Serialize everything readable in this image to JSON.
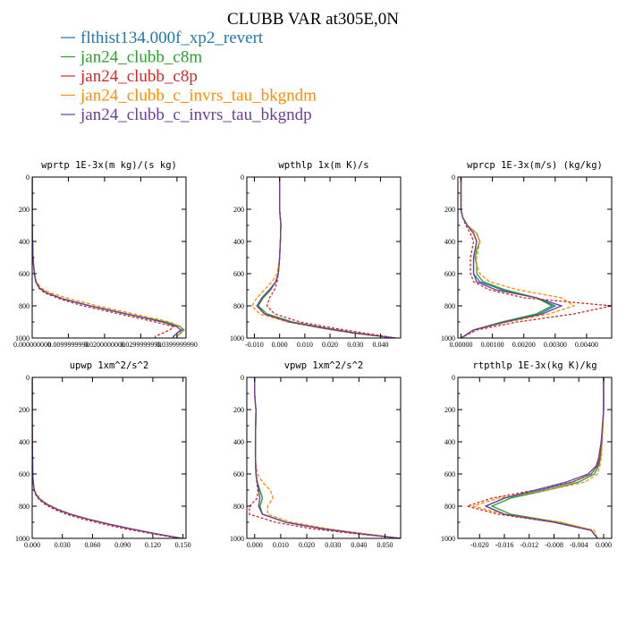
{
  "title": "CLUBB VAR at305E,0N",
  "legend": [
    {
      "label": "flthist134.000f_xp2_revert",
      "color": "#1f77b4"
    },
    {
      "label": "jan24_clubb_c8m",
      "color": "#2ca02c"
    },
    {
      "label": "jan24_clubb_c8p",
      "color": "#d62728"
    },
    {
      "label": "jan24_clubb_c_invrs_tau_bkgndm",
      "color": "#ff8c00"
    },
    {
      "label": "jan24_clubb_c_invrs_tau_bkgndp",
      "color": "#6a3d9a"
    }
  ],
  "chart_data": [
    {
      "type": "line",
      "title": "wprtp  1E-3x(m kg)/(s kg)",
      "xlim": [
        0.0,
        0.0425
      ],
      "ylim": [
        1000,
        0
      ],
      "xticks": [
        0.0,
        0.01,
        0.02,
        0.03,
        0.04
      ],
      "xtick_labels": [
        "0.000000000",
        "0.0099999990",
        "0.0200000000",
        "0.0299999990",
        "0.0399999990"
      ],
      "yticks": [
        0,
        200,
        400,
        600,
        800,
        1000
      ],
      "y": [
        0,
        300,
        500,
        600,
        650,
        690,
        720,
        760,
        800,
        850,
        900,
        930,
        950,
        970,
        990,
        1000
      ],
      "series": [
        {
          "name": "flthist134.000f_xp2_revert",
          "values": [
            0,
            0,
            0.0002,
            0.0006,
            0.001,
            0.002,
            0.004,
            0.009,
            0.016,
            0.026,
            0.036,
            0.041,
            0.0415,
            0.04,
            0.039,
            0.039
          ]
        },
        {
          "name": "jan24_clubb_c8m",
          "values": [
            0,
            0,
            0.0002,
            0.0006,
            0.001,
            0.002,
            0.004,
            0.009,
            0.016,
            0.026,
            0.037,
            0.041,
            0.042,
            0.041,
            0.04,
            0.04
          ]
        },
        {
          "name": "jan24_clubb_c8p",
          "values": [
            0,
            0,
            0.0002,
            0.0006,
            0.001,
            0.0018,
            0.0035,
            0.008,
            0.014,
            0.024,
            0.034,
            0.039,
            0.038,
            0.036,
            0.034,
            0.034
          ]
        },
        {
          "name": "jan24_clubb_c_invrs_tau_bkgndm",
          "values": [
            0,
            0,
            0.0002,
            0.0006,
            0.0012,
            0.0025,
            0.005,
            0.011,
            0.018,
            0.028,
            0.038,
            0.041,
            0.042,
            0.041,
            0.04,
            0.04
          ]
        },
        {
          "name": "jan24_clubb_c_invrs_tau_bkgndp",
          "values": [
            0,
            0,
            0.0002,
            0.0006,
            0.001,
            0.002,
            0.004,
            0.009,
            0.016,
            0.026,
            0.036,
            0.04,
            0.041,
            0.04,
            0.039,
            0.039
          ]
        }
      ]
    },
    {
      "type": "line",
      "title": "wpthlp  1x(m K)/s",
      "xlim": [
        -0.013,
        0.048
      ],
      "ylim": [
        1000,
        0
      ],
      "xticks": [
        -0.01,
        0.0,
        0.01,
        0.02,
        0.03,
        0.04
      ],
      "xtick_labels": [
        "-0.010",
        "0.000",
        "0.010",
        "0.020",
        "0.030",
        "0.040"
      ],
      "yticks": [
        0,
        200,
        400,
        600,
        800,
        1000
      ],
      "y": [
        0,
        100,
        200,
        300,
        400,
        500,
        600,
        650,
        700,
        750,
        800,
        850,
        900,
        940,
        970,
        1000
      ],
      "series": [
        {
          "name": "flthist134.000f_xp2_revert",
          "values": [
            0.0,
            0.0,
            0.0,
            0.0005,
            0.0003,
            0.0,
            -0.0005,
            -0.0015,
            -0.004,
            -0.007,
            -0.009,
            -0.006,
            0.004,
            0.018,
            0.03,
            0.046
          ]
        },
        {
          "name": "jan24_clubb_c8m",
          "values": [
            0.0,
            0.0,
            0.0,
            0.0005,
            0.0003,
            0.0,
            -0.0005,
            -0.0015,
            -0.0035,
            -0.0065,
            -0.0085,
            -0.005,
            0.005,
            0.019,
            0.031,
            0.046
          ]
        },
        {
          "name": "jan24_clubb_c8p",
          "values": [
            0.0,
            0.0,
            0.0,
            0.0005,
            0.0003,
            0.0,
            -0.0005,
            -0.001,
            -0.002,
            -0.004,
            -0.005,
            -0.002,
            0.008,
            0.022,
            0.034,
            0.046
          ]
        },
        {
          "name": "jan24_clubb_c_invrs_tau_bkgndm",
          "values": [
            0.0,
            0.0,
            0.0,
            0.0005,
            0.0003,
            0.0,
            -0.001,
            -0.003,
            -0.006,
            -0.009,
            -0.011,
            -0.008,
            0.003,
            0.017,
            0.029,
            0.046
          ]
        },
        {
          "name": "jan24_clubb_c_invrs_tau_bkgndp",
          "values": [
            0.0,
            0.0,
            0.0,
            0.0005,
            0.0003,
            0.0,
            -0.0005,
            -0.0015,
            -0.004,
            -0.007,
            -0.009,
            -0.006,
            0.004,
            0.018,
            0.03,
            0.046
          ]
        }
      ]
    },
    {
      "type": "line",
      "title": "wprcp  1E-3x(m/s) (kg/kg)",
      "xlim": [
        -0.0001,
        0.0048
      ],
      "ylim": [
        1000,
        0
      ],
      "xticks": [
        0.0,
        0.001,
        0.002,
        0.003,
        0.004
      ],
      "xtick_labels": [
        "0.00000",
        "0.00100",
        "0.00200",
        "0.00300",
        "0.00400"
      ],
      "yticks": [
        0,
        200,
        400,
        600,
        800,
        1000
      ],
      "y": [
        0,
        200,
        250,
        300,
        350,
        400,
        450,
        500,
        550,
        600,
        650,
        700,
        750,
        800,
        850,
        900,
        950,
        1000
      ],
      "series": [
        {
          "name": "flthist134.000f_xp2_revert",
          "values": [
            0.0,
            0.0,
            5e-05,
            0.0002,
            0.0004,
            0.0005,
            0.00045,
            0.0004,
            0.0004,
            0.0004,
            0.0006,
            0.0013,
            0.0024,
            0.003,
            0.0025,
            0.0014,
            0.0004,
            0.0
          ]
        },
        {
          "name": "jan24_clubb_c8m",
          "values": [
            0.0,
            0.0,
            5e-05,
            0.0002,
            0.0005,
            0.0006,
            0.0005,
            0.00045,
            0.0005,
            0.0005,
            0.0007,
            0.0014,
            0.0024,
            0.0029,
            0.0024,
            0.0013,
            0.0004,
            0.0
          ]
        },
        {
          "name": "jan24_clubb_c8p",
          "values": [
            0.0,
            0.0,
            5e-05,
            0.00015,
            0.0003,
            0.0004,
            0.00035,
            0.0003,
            0.0003,
            0.0003,
            0.0004,
            0.0009,
            0.002,
            0.0048,
            0.0036,
            0.0018,
            0.0005,
            0.0
          ]
        },
        {
          "name": "jan24_clubb_c_invrs_tau_bkgndm",
          "values": [
            0.0,
            0.0,
            5e-05,
            0.0002,
            0.0005,
            0.0006,
            0.00055,
            0.0005,
            0.0005,
            0.0006,
            0.0009,
            0.0018,
            0.0032,
            0.0036,
            0.0028,
            0.0015,
            0.0004,
            0.0
          ]
        },
        {
          "name": "jan24_clubb_c_invrs_tau_bkgndp",
          "values": [
            0.0,
            0.0,
            5e-05,
            0.0002,
            0.0004,
            0.0005,
            0.00045,
            0.0004,
            0.0004,
            0.0004,
            0.0005,
            0.0011,
            0.0024,
            0.0032,
            0.0026,
            0.0014,
            0.0004,
            0.0
          ]
        }
      ]
    },
    {
      "type": "line",
      "title": "upwp  1xm^2/s^2",
      "xlim": [
        0.0,
        0.153
      ],
      "ylim": [
        1000,
        0
      ],
      "xticks": [
        0.0,
        0.03,
        0.06,
        0.09,
        0.12,
        0.15
      ],
      "xtick_labels": [
        "0.000",
        "0.030",
        "0.060",
        "0.090",
        "0.120",
        "0.150"
      ],
      "yticks": [
        0,
        200,
        400,
        600,
        800,
        1000
      ],
      "y": [
        0,
        300,
        600,
        650,
        700,
        730,
        760,
        790,
        820,
        850,
        880,
        910,
        940,
        970,
        1000
      ],
      "series": [
        {
          "name": "flthist134.000f_xp2_revert",
          "values": [
            0.0,
            0.0,
            0.0005,
            0.001,
            0.002,
            0.004,
            0.008,
            0.015,
            0.025,
            0.038,
            0.055,
            0.075,
            0.098,
            0.122,
            0.149
          ]
        },
        {
          "name": "jan24_clubb_c8m",
          "values": [
            0.0,
            0.0,
            0.0005,
            0.001,
            0.002,
            0.004,
            0.008,
            0.015,
            0.025,
            0.038,
            0.055,
            0.075,
            0.098,
            0.122,
            0.149
          ]
        },
        {
          "name": "jan24_clubb_c8p",
          "values": [
            0.0,
            0.0,
            0.0005,
            0.001,
            0.002,
            0.0035,
            0.007,
            0.013,
            0.022,
            0.034,
            0.05,
            0.07,
            0.092,
            0.118,
            0.146
          ]
        },
        {
          "name": "jan24_clubb_c_invrs_tau_bkgndm",
          "values": [
            0.0,
            0.0,
            0.0005,
            0.001,
            0.002,
            0.005,
            0.009,
            0.016,
            0.026,
            0.039,
            0.056,
            0.076,
            0.098,
            0.122,
            0.149
          ]
        },
        {
          "name": "jan24_clubb_c_invrs_tau_bkgndp",
          "values": [
            0.0,
            0.0,
            0.0005,
            0.001,
            0.002,
            0.004,
            0.008,
            0.015,
            0.025,
            0.038,
            0.055,
            0.075,
            0.098,
            0.122,
            0.149
          ]
        }
      ]
    },
    {
      "type": "line",
      "title": "vpwp  1xm^2/s^2",
      "xlim": [
        -0.003,
        0.056
      ],
      "ylim": [
        1000,
        0
      ],
      "xticks": [
        0.0,
        0.01,
        0.02,
        0.03,
        0.04,
        0.05
      ],
      "xtick_labels": [
        "0.000",
        "0.010",
        "0.020",
        "0.030",
        "0.040",
        "0.050"
      ],
      "yticks": [
        0,
        200,
        400,
        600,
        800,
        1000
      ],
      "y": [
        0,
        100,
        150,
        200,
        300,
        400,
        500,
        600,
        650,
        700,
        750,
        800,
        850,
        900,
        940,
        970,
        1000
      ],
      "series": [
        {
          "name": "flthist134.000f_xp2_revert",
          "values": [
            0.0,
            0.0,
            0.0002,
            0.0005,
            0.0004,
            0.0003,
            0.0003,
            0.0005,
            0.001,
            0.002,
            0.003,
            0.002,
            0.003,
            0.012,
            0.026,
            0.04,
            0.056
          ]
        },
        {
          "name": "jan24_clubb_c8m",
          "values": [
            0.0,
            0.0,
            0.0002,
            0.0005,
            0.0004,
            0.0003,
            0.0003,
            0.0005,
            0.001,
            0.002,
            0.003,
            0.002,
            0.003,
            0.012,
            0.026,
            0.04,
            0.056
          ]
        },
        {
          "name": "jan24_clubb_c8p",
          "values": [
            0.0,
            0.0,
            0.0002,
            0.0005,
            0.0004,
            0.0003,
            0.0003,
            0.0005,
            0.0008,
            0.0012,
            0.001,
            -0.002,
            -0.002,
            0.008,
            0.022,
            0.038,
            0.056
          ]
        },
        {
          "name": "jan24_clubb_c_invrs_tau_bkgndm",
          "values": [
            0.0,
            0.0,
            0.0002,
            0.0005,
            0.0004,
            0.0003,
            0.0003,
            0.001,
            0.003,
            0.006,
            0.007,
            0.005,
            0.005,
            0.014,
            0.028,
            0.042,
            0.056
          ]
        },
        {
          "name": "jan24_clubb_c_invrs_tau_bkgndp",
          "values": [
            0.0,
            0.0,
            0.0002,
            0.0005,
            0.0004,
            0.0003,
            0.0003,
            0.0005,
            0.001,
            0.0015,
            0.002,
            0.0015,
            0.003,
            0.012,
            0.026,
            0.04,
            0.056
          ]
        }
      ]
    },
    {
      "type": "line",
      "title": "rtpthlp  1E-3x(kg K)/kg",
      "xlim": [
        -0.0235,
        0.0013
      ],
      "ylim": [
        1000,
        0
      ],
      "xticks": [
        -0.02,
        -0.016,
        -0.012,
        -0.008,
        -0.004,
        0.0
      ],
      "xtick_labels": [
        "-0.020",
        "-0.016",
        "-0.012",
        "-0.008",
        "-0.004",
        "0.000"
      ],
      "yticks": [
        0,
        200,
        400,
        600,
        800,
        1000
      ],
      "y": [
        0,
        200,
        400,
        500,
        550,
        600,
        650,
        700,
        750,
        800,
        850,
        900,
        950,
        1000
      ],
      "series": [
        {
          "name": "flthist134.000f_xp2_revert",
          "values": [
            0.0,
            0.0,
            -0.0003,
            -0.0006,
            -0.001,
            -0.002,
            -0.005,
            -0.01,
            -0.016,
            -0.019,
            -0.016,
            -0.008,
            -0.002,
            -0.001
          ]
        },
        {
          "name": "jan24_clubb_c8m",
          "values": [
            0.0,
            0.0,
            -0.0003,
            -0.0005,
            -0.0008,
            -0.0015,
            -0.004,
            -0.009,
            -0.015,
            -0.018,
            -0.015,
            -0.007,
            -0.002,
            -0.001
          ]
        },
        {
          "name": "jan24_clubb_c8p",
          "values": [
            0.0,
            0.0,
            -0.0003,
            -0.0006,
            -0.001,
            -0.002,
            -0.005,
            -0.011,
            -0.018,
            -0.022,
            -0.017,
            -0.008,
            -0.002,
            -0.001
          ]
        },
        {
          "name": "jan24_clubb_c_invrs_tau_bkgndm",
          "values": [
            0.0,
            0.0,
            -0.0002,
            -0.0004,
            -0.0006,
            -0.001,
            -0.003,
            -0.009,
            -0.017,
            -0.021,
            -0.016,
            -0.007,
            -0.0015,
            -0.001
          ]
        },
        {
          "name": "jan24_clubb_c_invrs_tau_bkgndp",
          "values": [
            0.0,
            0.0,
            -0.0004,
            -0.0008,
            -0.0012,
            -0.0025,
            -0.006,
            -0.011,
            -0.016,
            -0.019,
            -0.016,
            -0.008,
            -0.002,
            -0.001
          ]
        }
      ]
    }
  ]
}
